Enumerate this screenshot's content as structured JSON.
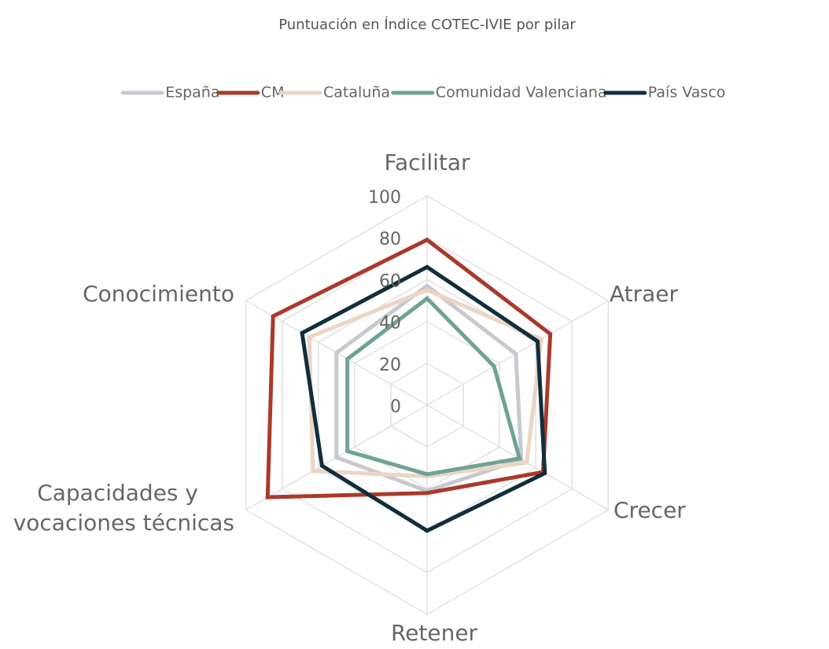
{
  "chart_data": {
    "type": "radar",
    "title": "Puntuación en Índice COTEC-IVIE por pilar",
    "categories": [
      "Facilitar",
      "Atraer",
      "Crecer",
      "Retener",
      "Capacidades y vocaciones técnicas",
      "Conocimiento"
    ],
    "series": [
      {
        "name": "España",
        "color": "#c8c9d0",
        "values": [
          57,
          49,
          52,
          41,
          50,
          50
        ]
      },
      {
        "name": "CM",
        "color": "#a93a2b",
        "values": [
          79,
          68,
          64,
          42,
          88,
          85
        ]
      },
      {
        "name": "Cataluña",
        "color": "#ecd5c3",
        "values": [
          55,
          63,
          55,
          34,
          63,
          65
        ]
      },
      {
        "name": "Comunidad Valenciana",
        "color": "#6fa394",
        "values": [
          51,
          37,
          51,
          33,
          44,
          44
        ]
      },
      {
        "name": "País Vasco",
        "color": "#0f2e3e",
        "values": [
          66,
          61,
          65,
          60,
          58,
          69
        ]
      }
    ],
    "ylim": [
      0,
      100
    ],
    "yticks": [
      0,
      20,
      40,
      60,
      80,
      100
    ],
    "grid": true,
    "legend": "top"
  }
}
